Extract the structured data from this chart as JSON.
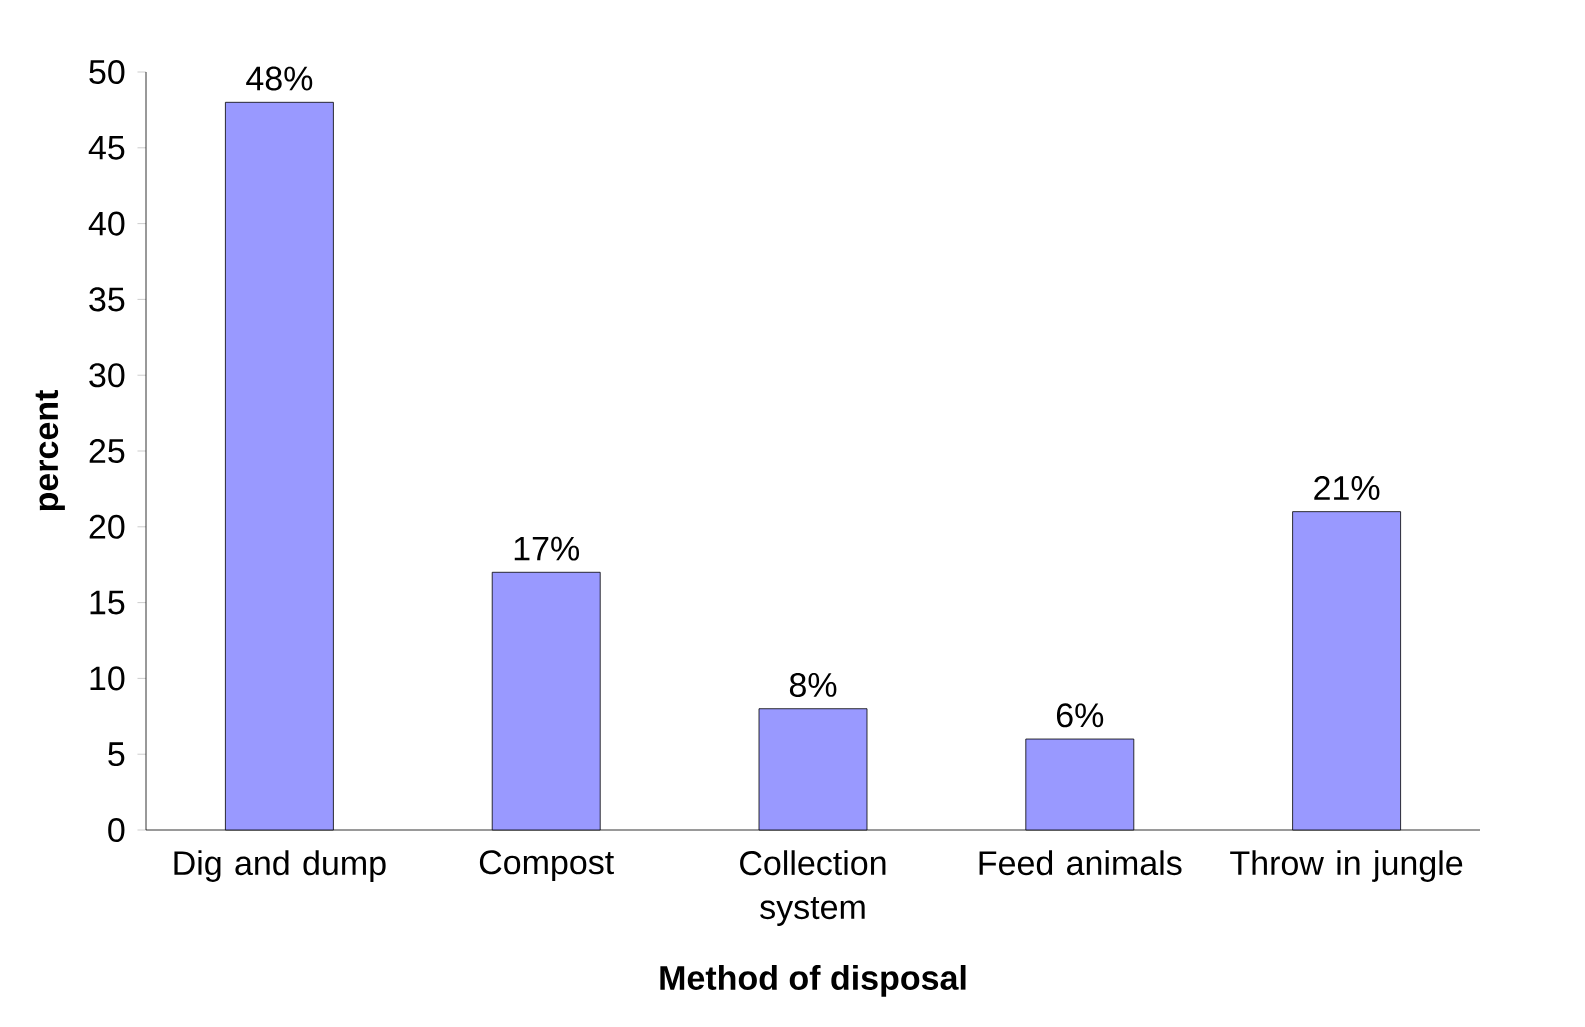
{
  "chart_data": {
    "type": "bar",
    "xlabel": "Method of disposal",
    "ylabel": "percent",
    "categories": [
      "Dig and dump",
      "Compost",
      "Collection system",
      "Feed animals",
      "Throw in jungle"
    ],
    "values": [
      48,
      17,
      8,
      6,
      21
    ],
    "value_labels": [
      "48%",
      "17%",
      "8%",
      "6%",
      "21%"
    ],
    "color": "#9999ff",
    "ylim": [
      0,
      50
    ],
    "yticks": [
      0,
      5,
      10,
      15,
      20,
      25,
      30,
      35,
      40,
      45,
      50
    ],
    "grid": false
  }
}
